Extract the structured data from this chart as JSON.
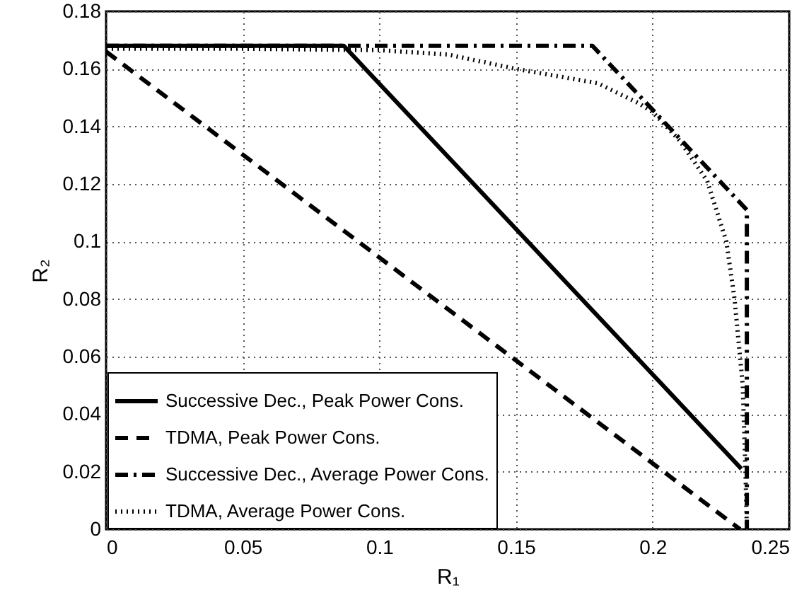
{
  "chart_data": {
    "type": "line",
    "xlabel": "R₁",
    "ylabel": "R₂",
    "xlim": [
      0,
      0.25
    ],
    "xticks": [
      0,
      0.05,
      0.1,
      0.15,
      0.2,
      0.25
    ],
    "ylim": [
      0,
      0.18
    ],
    "yticks": [
      0,
      0.02,
      0.04,
      0.06,
      0.08,
      0.1,
      0.12,
      0.14,
      0.16,
      0.18
    ],
    "grid": true,
    "legend": "bottom left",
    "series": [
      {
        "name": "Successive Dec., Peak Power Cons.",
        "color": "#000000",
        "line_style": "solid",
        "x": [
          0,
          0.087,
          0.2325
        ],
        "values": [
          0.168,
          0.168,
          0.021
        ]
      },
      {
        "name": "TDMA, Peak Power Cons.",
        "color": "#000000",
        "line_style": "dashed",
        "x": [
          0,
          0.232
        ],
        "values": [
          0.166,
          0
        ]
      },
      {
        "name": "Successive Dec., Average Power Cons.",
        "color": "#000000",
        "line_style": "dashdot",
        "x": [
          0,
          0.178,
          0.2345,
          0.2345
        ],
        "values": [
          0.168,
          0.168,
          0.111,
          0
        ]
      },
      {
        "name": "TDMA, Average Power Cons.",
        "color": "#000000",
        "line_style": "dotted",
        "x": [
          0,
          0.05,
          0.1,
          0.125,
          0.15,
          0.18,
          0.195,
          0.2,
          0.21,
          0.22,
          0.227,
          0.23,
          0.233,
          0.234,
          0.2345
        ],
        "values": [
          0.167,
          0.167,
          0.1665,
          0.165,
          0.16,
          0.155,
          0.148,
          0.145,
          0.135,
          0.121,
          0.1,
          0.08,
          0.05,
          0.02,
          0
        ]
      }
    ]
  }
}
